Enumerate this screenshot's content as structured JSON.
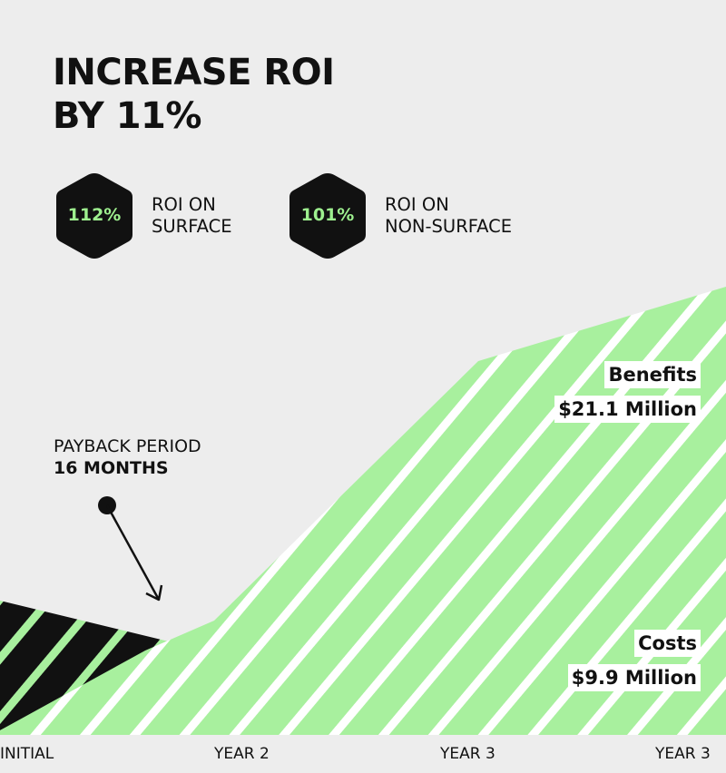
{
  "title": {
    "line1": "INCREASE ROI",
    "line2": "BY 11%"
  },
  "stats": [
    {
      "value": "112%",
      "label_line1": "ROI ON",
      "label_line2": "SURFACE"
    },
    {
      "value": "101%",
      "label_line1": "ROI ON",
      "label_line2": "NON-SURFACE"
    }
  ],
  "payback": {
    "label": "PAYBACK PERIOD",
    "value": "16 MONTHS"
  },
  "colors": {
    "background": "#ededed",
    "benefits_fill": "#a8f09e",
    "costs_fill": "#111111",
    "stripe": "#ffffff",
    "hex_fill": "#111111",
    "hex_text": "#9ef08f"
  },
  "chart_data": {
    "type": "area",
    "categories": [
      "INITIAL",
      "YEAR 2",
      "YEAR 3",
      "YEAR 3"
    ],
    "series": [
      {
        "name": "Costs",
        "label_line1": "Costs",
        "label_line2": "$9.9 Million"
      },
      {
        "name": "Benefits",
        "label_line1": "Benefits",
        "label_line2": "$21.1 Million"
      }
    ],
    "annotation": "PAYBACK PERIOD 16 MONTHS",
    "grid": false,
    "legend": "inline labels right"
  }
}
